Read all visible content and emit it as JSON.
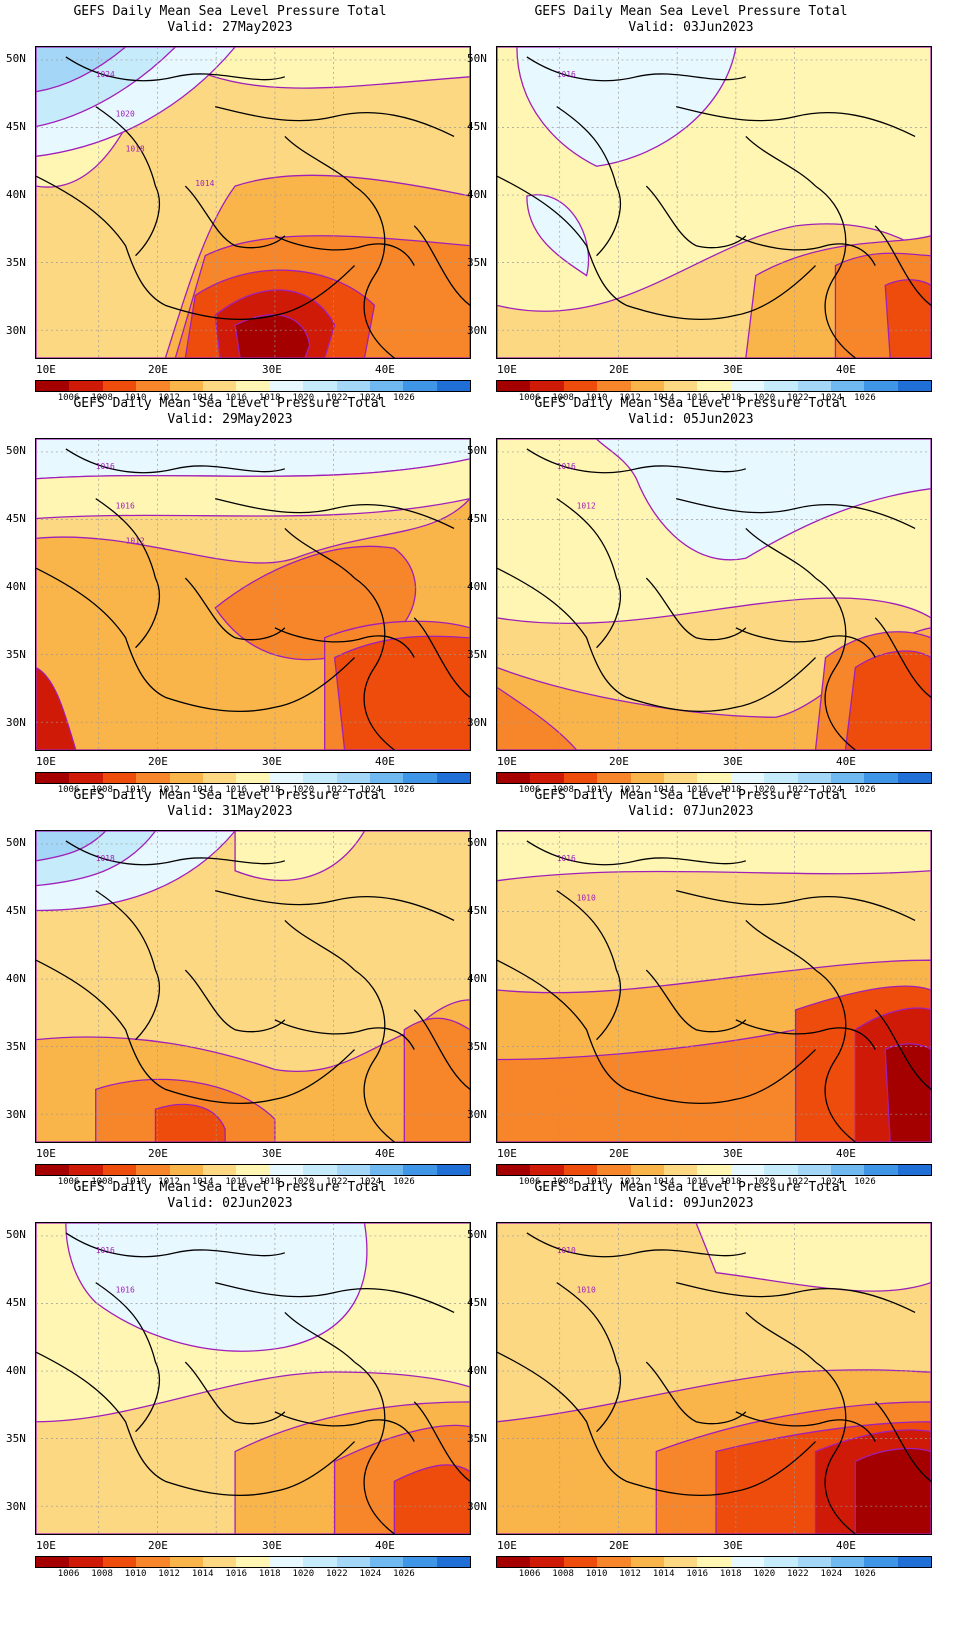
{
  "panels": [
    {
      "title": "GEFS Daily Mean Sea Level Pressure Total",
      "valid": "Valid: 27May2023",
      "contour_labels": [
        "1024",
        "1020",
        "1018",
        "1014"
      ]
    },
    {
      "title": "GEFS Daily Mean Sea Level Pressure Total",
      "valid": "Valid: 03Jun2023",
      "contour_labels": [
        "1016"
      ]
    },
    {
      "title": "GEFS Daily Mean Sea Level Pressure Total",
      "valid": "Valid: 29May2023",
      "contour_labels": [
        "1016",
        "1016",
        "1012"
      ]
    },
    {
      "title": "GEFS Daily Mean Sea Level Pressure Total",
      "valid": "Valid: 05Jun2023",
      "contour_labels": [
        "1016",
        "1012"
      ]
    },
    {
      "title": "GEFS Daily Mean Sea Level Pressure Total",
      "valid": "Valid: 31May2023",
      "contour_labels": [
        "1018"
      ]
    },
    {
      "title": "GEFS Daily Mean Sea Level Pressure Total",
      "valid": "Valid: 07Jun2023",
      "contour_labels": [
        "1016",
        "1010"
      ]
    },
    {
      "title": "GEFS Daily Mean Sea Level Pressure Total",
      "valid": "Valid: 02Jun2023",
      "contour_labels": [
        "1016",
        "1016"
      ]
    },
    {
      "title": "GEFS Daily Mean Sea Level Pressure Total",
      "valid": "Valid: 09Jun2023",
      "contour_labels": [
        "1010",
        "1010"
      ]
    }
  ],
  "lat_labels": [
    "50N",
    "45N",
    "40N",
    "35N",
    "30N"
  ],
  "lon_labels": [
    "10E",
    "20E",
    "30E",
    "40E"
  ],
  "colorbar": {
    "labels": [
      "1006",
      "1008",
      "1010",
      "1012",
      "1014",
      "1016",
      "1018",
      "1020",
      "1022",
      "1024",
      "1026"
    ],
    "colors": [
      "#a50000",
      "#cf1a08",
      "#ee4c0c",
      "#f7862a",
      "#f9b44a",
      "#fdd883",
      "#fff6b3",
      "#e8f8ff",
      "#c6ebfb",
      "#a3d6f7",
      "#6fb8f0",
      "#3f96e6",
      "#1f6fd6"
    ]
  }
}
